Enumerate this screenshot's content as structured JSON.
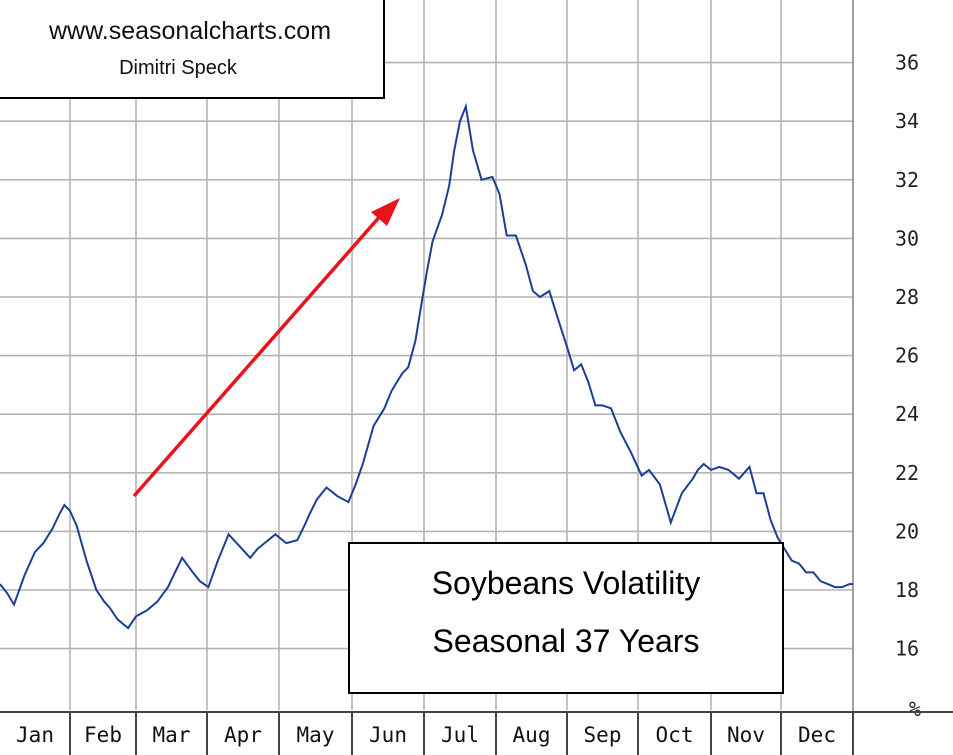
{
  "chart_data": {
    "type": "line",
    "title": "Soybeans Volatility",
    "subtitle": "Seasonal 37 Years",
    "watermark": {
      "site": "www.seasonalcharts.com",
      "author": "Dimitri Speck"
    },
    "ylabel": "%",
    "ylim": [
      15,
      37
    ],
    "yticks": [
      16,
      18,
      20,
      22,
      24,
      26,
      28,
      30,
      32,
      34,
      36
    ],
    "months": [
      "Jan",
      "Feb",
      "Mar",
      "Apr",
      "May",
      "Jun",
      "Jul",
      "Aug",
      "Sep",
      "Oct",
      "Nov",
      "Dec"
    ],
    "grid": true,
    "line_color": "#1c3f94",
    "arrow_color": "#e8141c",
    "series": [
      {
        "name": "Soybeans Volatility",
        "x": [
          0.0,
          0.1,
          0.2,
          0.35,
          0.5,
          0.62,
          0.75,
          0.85,
          0.92,
          1.0,
          1.1,
          1.25,
          1.4,
          1.52,
          1.6,
          1.72,
          1.88,
          2.0,
          2.15,
          2.3,
          2.45,
          2.55,
          2.65,
          2.8,
          2.9,
          3.02,
          3.15,
          3.3,
          3.45,
          3.6,
          3.7,
          3.8,
          3.95,
          4.1,
          4.25,
          4.35,
          4.42,
          4.52,
          4.65,
          4.8,
          4.95,
          5.05,
          5.15,
          5.3,
          5.45,
          5.55,
          5.65,
          5.7,
          5.78,
          5.88,
          5.98,
          6.05,
          6.12,
          6.25,
          6.35,
          6.42,
          6.5,
          6.58,
          6.68,
          6.8,
          6.95,
          7.05,
          7.15,
          7.28,
          7.42,
          7.52,
          7.62,
          7.75,
          7.88,
          8.0,
          8.1,
          8.2,
          8.3,
          8.4,
          8.5,
          8.62,
          8.75,
          8.9,
          9.05,
          9.15,
          9.3,
          9.45,
          9.6,
          9.75,
          9.82,
          9.9,
          10.0,
          10.12,
          10.25,
          10.4,
          10.55,
          10.65,
          10.75,
          10.85,
          10.95,
          11.05,
          11.15,
          11.25,
          11.35,
          11.45,
          11.55,
          11.65,
          11.75,
          11.85,
          11.95,
          12.0
        ],
        "values": [
          18.2,
          17.9,
          17.5,
          18.5,
          19.3,
          19.6,
          20.1,
          20.6,
          20.9,
          20.7,
          20.2,
          19.0,
          18.0,
          17.6,
          17.4,
          17.0,
          16.7,
          17.1,
          17.3,
          17.6,
          18.1,
          18.6,
          19.1,
          18.6,
          18.3,
          18.1,
          19.0,
          19.9,
          19.5,
          19.1,
          19.4,
          19.6,
          19.9,
          19.6,
          19.7,
          20.2,
          20.6,
          21.1,
          21.5,
          21.2,
          21.0,
          21.6,
          22.3,
          23.6,
          24.2,
          24.8,
          25.2,
          25.4,
          25.6,
          26.5,
          28.0,
          29.0,
          29.9,
          30.8,
          31.8,
          33.0,
          34.0,
          34.5,
          33.0,
          32.0,
          32.1,
          31.5,
          30.1,
          30.1,
          29.1,
          28.2,
          28.0,
          28.2,
          27.2,
          26.3,
          25.5,
          25.7,
          25.1,
          24.3,
          24.3,
          24.2,
          23.4,
          22.7,
          21.9,
          22.1,
          21.6,
          20.3,
          21.3,
          21.8,
          22.1,
          22.3,
          22.1,
          22.2,
          22.1,
          21.8,
          22.2,
          21.3,
          21.3,
          20.4,
          19.8,
          19.4,
          19.0,
          18.9,
          18.6,
          18.6,
          18.3,
          18.2,
          18.1,
          18.1,
          18.2,
          18.2
        ]
      }
    ]
  }
}
